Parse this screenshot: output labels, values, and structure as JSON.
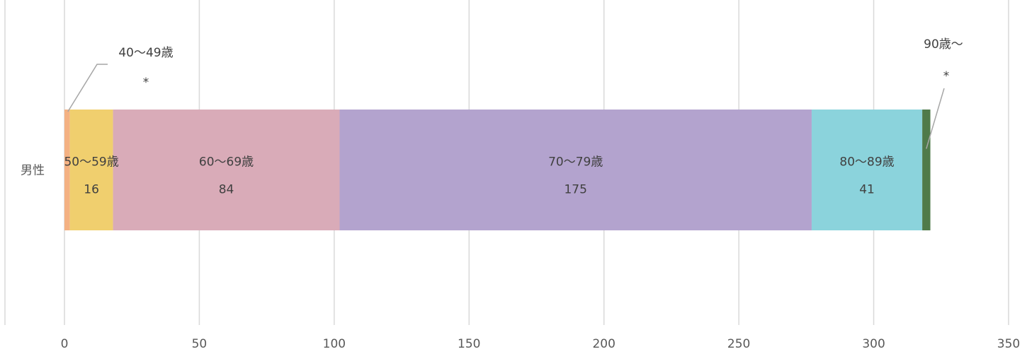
{
  "chart_data": {
    "type": "bar",
    "orientation": "horizontal",
    "stacked": true,
    "title": "",
    "xlabel": "",
    "ylabel": "",
    "categories": [
      "男性"
    ],
    "xlim": [
      0,
      350
    ],
    "x_ticks": [
      0,
      50,
      100,
      150,
      200,
      250,
      300,
      350
    ],
    "grid": true,
    "legend": "none",
    "series": [
      {
        "name": "40〜49歳",
        "values": [
          2
        ],
        "value_label": "*",
        "color": "#F4B183",
        "label_style": "callout-left"
      },
      {
        "name": "50〜59歳",
        "values": [
          16
        ],
        "value_label": "16",
        "color": "#F0CF6E",
        "label_style": "inside"
      },
      {
        "name": "60〜69歳",
        "values": [
          84
        ],
        "value_label": "84",
        "color": "#D9ABB8",
        "label_style": "inside"
      },
      {
        "name": "70〜79歳",
        "values": [
          175
        ],
        "value_label": "175",
        "color": "#B3A3CE",
        "label_style": "inside"
      },
      {
        "name": "80〜89歳",
        "values": [
          41
        ],
        "value_label": "41",
        "color": "#8BD3DC",
        "label_style": "inside"
      },
      {
        "name": "90歳〜",
        "values": [
          3
        ],
        "value_label": "*",
        "color": "#4F7A4A",
        "label_style": "callout-right"
      }
    ]
  }
}
